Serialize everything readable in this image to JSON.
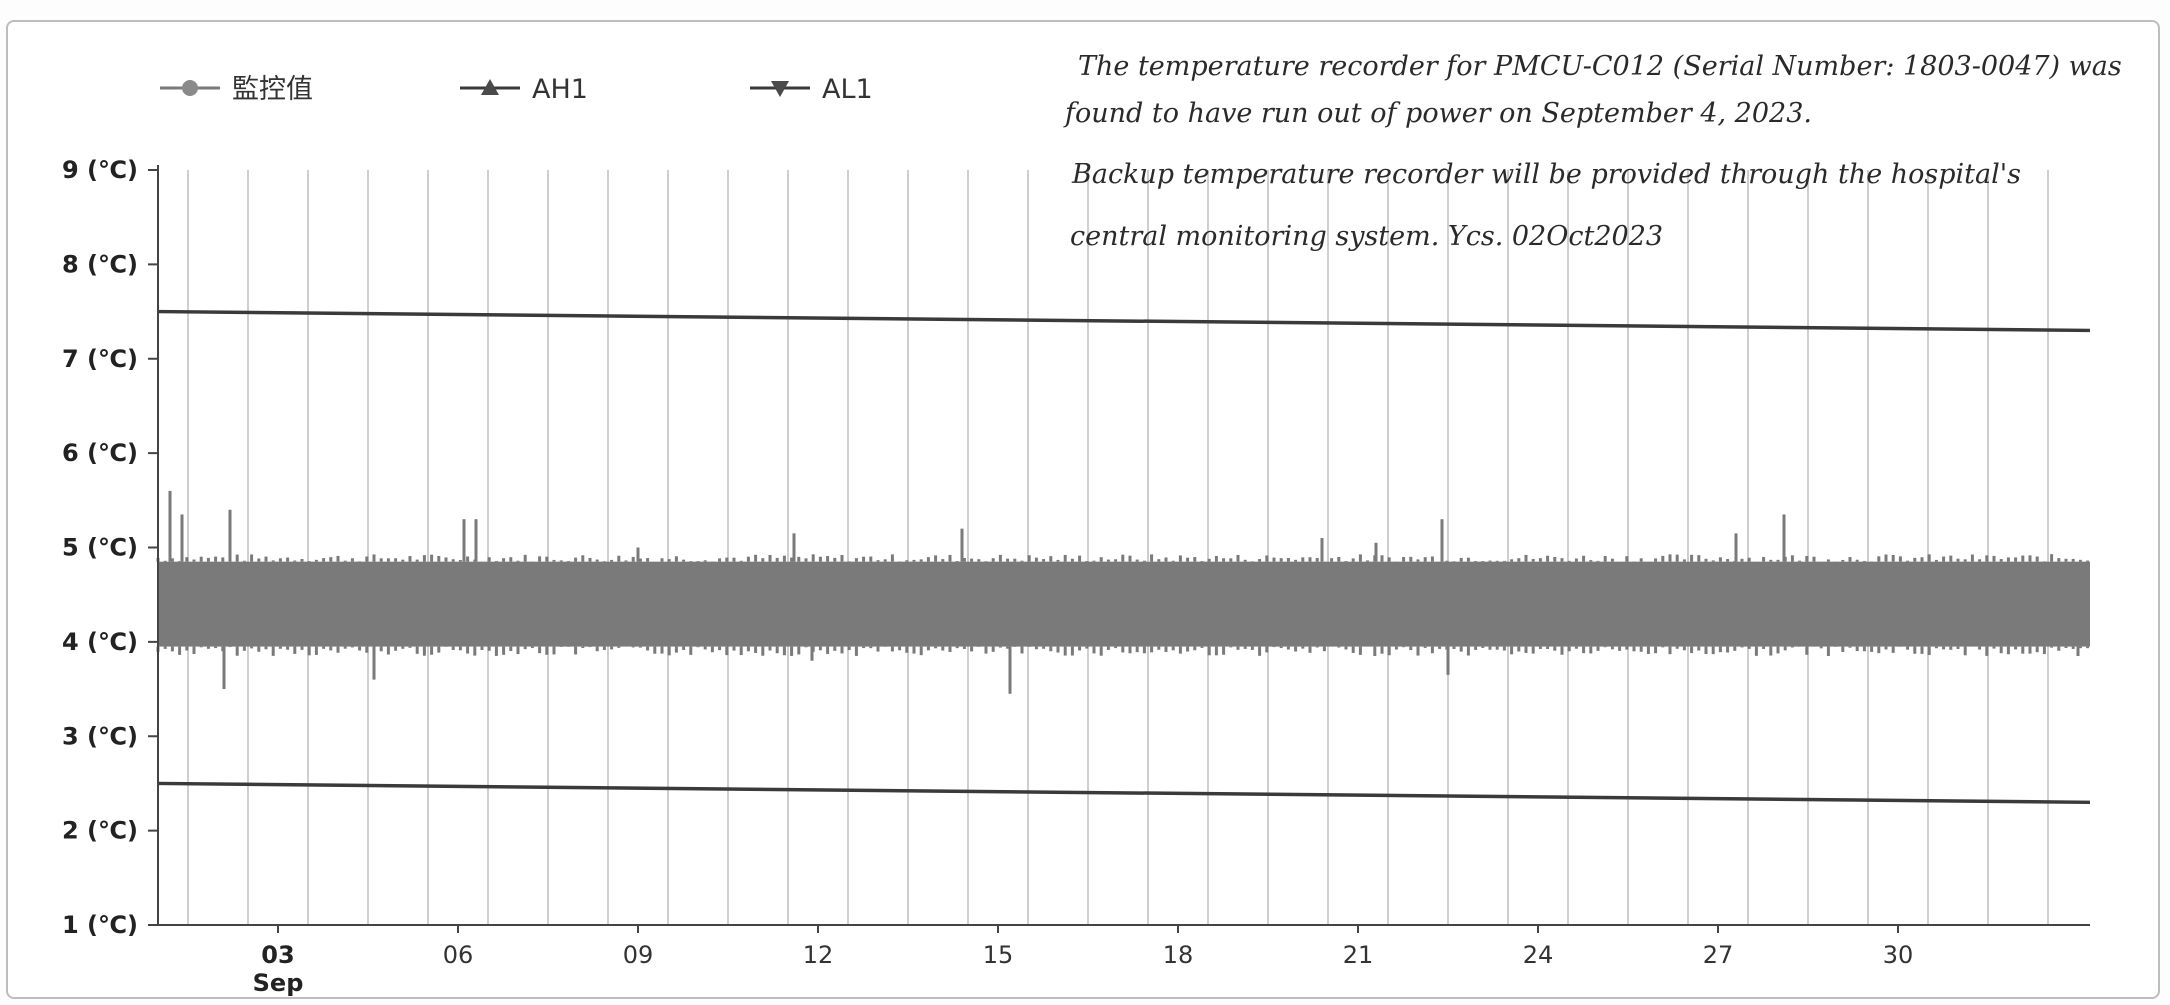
{
  "chart_data": {
    "type": "line",
    "title": "",
    "xlabel": "",
    "ylabel": "",
    "ylim": [
      1,
      9
    ],
    "xlim": [
      1,
      33.2
    ],
    "y_ticks": [
      {
        "value": 1,
        "label": "1 (℃)"
      },
      {
        "value": 2,
        "label": "2 (℃)"
      },
      {
        "value": 3,
        "label": "3 (℃)"
      },
      {
        "value": 4,
        "label": "4 (℃)"
      },
      {
        "value": 5,
        "label": "5 (℃)"
      },
      {
        "value": 6,
        "label": "6 (℃)"
      },
      {
        "value": 7,
        "label": "7 (℃)"
      },
      {
        "value": 8,
        "label": "8 (℃)"
      },
      {
        "value": 9,
        "label": "9 (℃)"
      }
    ],
    "x_ticks": [
      {
        "value": 3,
        "label": "03",
        "sublabel": "Sep"
      },
      {
        "value": 6,
        "label": "06"
      },
      {
        "value": 9,
        "label": "09"
      },
      {
        "value": 12,
        "label": "12"
      },
      {
        "value": 15,
        "label": "15"
      },
      {
        "value": 18,
        "label": "18"
      },
      {
        "value": 21,
        "label": "21"
      },
      {
        "value": 24,
        "label": "24"
      },
      {
        "value": 27,
        "label": "27"
      },
      {
        "value": 30,
        "label": "30"
      }
    ],
    "grid": {
      "vertical": true,
      "horizontal": false
    },
    "legend_position": "top-left",
    "series": [
      {
        "name": "監控值",
        "color": "#7a7a7a",
        "marker": "circle",
        "band": {
          "x": [
            1,
            33.2
          ],
          "low": 3.95,
          "high": 4.85
        },
        "spikes": [
          {
            "x": 1.2,
            "y": 5.6
          },
          {
            "x": 1.4,
            "y": 5.35
          },
          {
            "x": 2.1,
            "y": 3.5
          },
          {
            "x": 2.2,
            "y": 5.4
          },
          {
            "x": 4.6,
            "y": 3.6
          },
          {
            "x": 6.1,
            "y": 5.3
          },
          {
            "x": 6.3,
            "y": 5.3
          },
          {
            "x": 9.0,
            "y": 5.0
          },
          {
            "x": 11.6,
            "y": 5.15
          },
          {
            "x": 11.9,
            "y": 3.8
          },
          {
            "x": 14.4,
            "y": 5.2
          },
          {
            "x": 15.2,
            "y": 3.45
          },
          {
            "x": 20.4,
            "y": 5.1
          },
          {
            "x": 21.3,
            "y": 5.05
          },
          {
            "x": 22.4,
            "y": 5.3
          },
          {
            "x": 22.5,
            "y": 3.65
          },
          {
            "x": 27.3,
            "y": 5.15
          },
          {
            "x": 28.1,
            "y": 5.35
          },
          {
            "x": 33.0,
            "y": 3.85
          }
        ]
      },
      {
        "name": "AH1",
        "color": "#3a3a3a",
        "marker": "triangle-up",
        "points": [
          {
            "x": 1,
            "y": 7.5
          },
          {
            "x": 33.2,
            "y": 7.3
          }
        ]
      },
      {
        "name": "AL1",
        "color": "#3a3a3a",
        "marker": "triangle-down",
        "points": [
          {
            "x": 1,
            "y": 2.5
          },
          {
            "x": 33.2,
            "y": 2.3
          }
        ]
      }
    ],
    "annotations": [
      "The temperature recorder for PMCU-C012 (Serial Number: 1803-0047) was",
      "found to have run out of power on September 4, 2023.",
      "Backup temperature recorder will be provided through the hospital's",
      "central monitoring system.     Ycs. 02Oct2023"
    ]
  }
}
